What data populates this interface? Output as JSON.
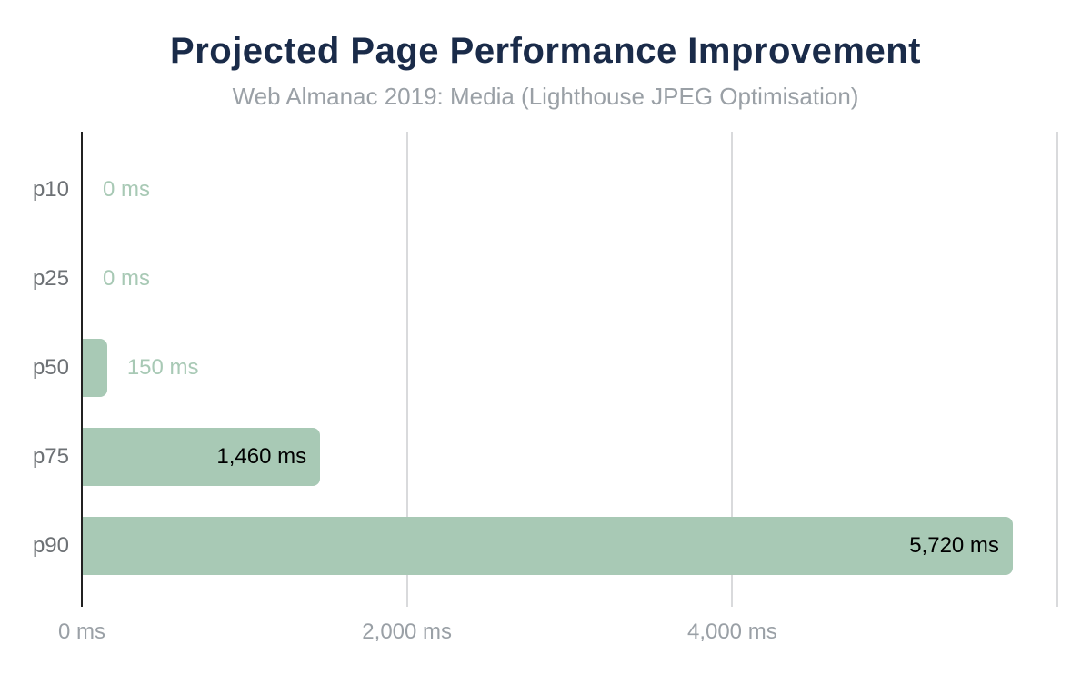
{
  "chart_data": {
    "type": "bar",
    "orientation": "horizontal",
    "title": "Projected Page Performance Improvement",
    "subtitle": "Web Almanac 2019: Media (Lighthouse JPEG Optimisation)",
    "categories": [
      "p10",
      "p25",
      "p50",
      "p75",
      "p90"
    ],
    "values": [
      0,
      0,
      150,
      1460,
      5720
    ],
    "value_labels": [
      "0 ms",
      "0 ms",
      "150 ms",
      "1,460 ms",
      "5,720 ms"
    ],
    "unit": "ms",
    "xlim": [
      0,
      6000
    ],
    "xticks": [
      {
        "value": 0,
        "label": "0 ms"
      },
      {
        "value": 2000,
        "label": "2,000 ms"
      },
      {
        "value": 4000,
        "label": "4,000 ms"
      },
      {
        "value": 6000,
        "label": ""
      }
    ],
    "grid": "vertical-only",
    "legend": "none",
    "colors": {
      "bar": "#a8c9b5",
      "value_label_inside": "#000000",
      "value_label_outside": "#a8c9b5",
      "title": "#1a2b49",
      "subtitle": "#9aa0a6",
      "category_label": "#6d7175",
      "tick_label": "#9aa0a6",
      "gridline": "#d9dadc",
      "axis_line": "#212121"
    }
  }
}
